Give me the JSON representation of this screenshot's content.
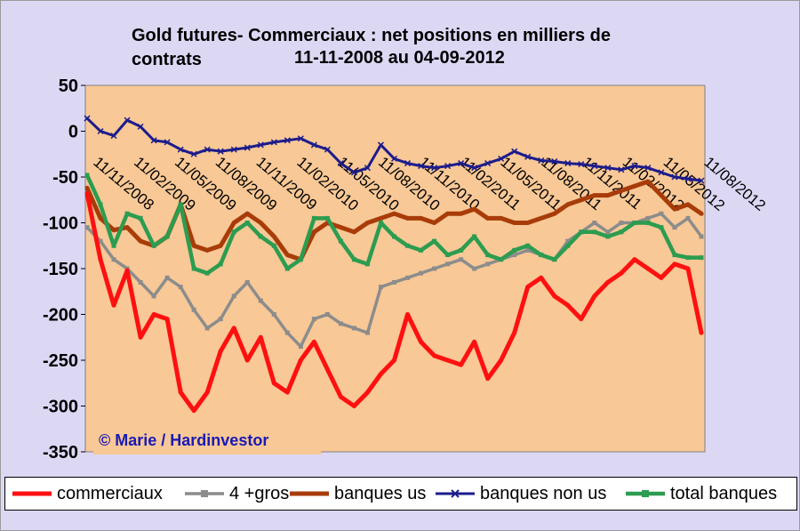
{
  "title": {
    "line1": "Gold futures- Commerciaux : net positions en milliers de",
    "line2": "contrats",
    "range": "11-11-2008 au 04-09-2012"
  },
  "watermark": "© Marie / Hardinvestor",
  "colors": {
    "background": "#dcd8f4",
    "plot": "#f8c896",
    "commerciaux": "#ff1010",
    "gros": "#8c8c8c",
    "banques_us": "#a83c08",
    "banques_non_us": "#1c1c8c",
    "total_banques": "#2c9c50",
    "watermark": "#1a1ab4"
  },
  "legend": [
    {
      "key": "commerciaux",
      "label": "commerciaux",
      "marker": "none"
    },
    {
      "key": "gros",
      "label": "4 +gros",
      "marker": "square"
    },
    {
      "key": "banques_us",
      "label": "banques us",
      "marker": "none"
    },
    {
      "key": "banques_non_us",
      "label": "banques non us",
      "marker": "x"
    },
    {
      "key": "total_banques",
      "label": "total banques",
      "marker": "square"
    }
  ],
  "chart_data": {
    "type": "line",
    "title": "Gold futures- Commerciaux : net positions en milliers de contrats 11-11-2008 au 04-09-2012",
    "ylim": [
      -350,
      50
    ],
    "yticks": [
      50,
      0,
      -50,
      -100,
      -150,
      -200,
      -250,
      -300,
      -350
    ],
    "ytick_labels": [
      "50",
      "0",
      "-50",
      "-100",
      "-150",
      "-200",
      "-250",
      "-300",
      "-350"
    ],
    "grid": false,
    "legend_position": "bottom",
    "x": [
      "11/11/2008",
      "11/12/2008",
      "11/01/2009",
      "11/02/2009",
      "11/03/2009",
      "11/04/2009",
      "11/05/2009",
      "11/06/2009",
      "11/07/2009",
      "11/08/2009",
      "11/09/2009",
      "11/10/2009",
      "11/11/2009",
      "11/12/2009",
      "11/01/2010",
      "11/02/2010",
      "11/03/2010",
      "11/04/2010",
      "11/05/2010",
      "11/06/2010",
      "11/07/2010",
      "11/08/2010",
      "11/09/2010",
      "11/10/2010",
      "11/11/2010",
      "11/12/2010",
      "11/01/2011",
      "11/02/2011",
      "11/03/2011",
      "11/04/2011",
      "11/05/2011",
      "11/06/2011",
      "11/07/2011",
      "11/08/2011",
      "11/09/2011",
      "11/10/2011",
      "11/11/2011",
      "11/12/2011",
      "11/01/2012",
      "11/02/2012",
      "11/03/2012",
      "11/04/2012",
      "11/05/2012",
      "11/06/2012",
      "11/07/2012",
      "11/08/2012",
      "04/09/2012"
    ],
    "x_tick_labels": [
      "11/11/2008",
      "11/02/2009",
      "11/05/2009",
      "11/08/2009",
      "11/11/2009",
      "11/02/2010",
      "11/05/2010",
      "11/08/2010",
      "11/11/2010",
      "11/02/2011",
      "11/05/2011",
      "11/08/2011",
      "11/11/2011",
      "11/02/2012",
      "11/05/2012",
      "11/08/2012"
    ],
    "series": [
      {
        "name": "commerciaux",
        "key": "commerciaux",
        "values": [
          -68,
          -140,
          -190,
          -152,
          -225,
          -200,
          -205,
          -285,
          -305,
          -285,
          -240,
          -215,
          -250,
          -225,
          -275,
          -285,
          -250,
          -230,
          -260,
          -290,
          -300,
          -285,
          -265,
          -250,
          -200,
          -230,
          -245,
          -250,
          -255,
          -230,
          -270,
          -250,
          -220,
          -170,
          -160,
          -180,
          -190,
          -205,
          -180,
          -165,
          -155,
          -140,
          -150,
          -160,
          -145,
          -150,
          -220
        ]
      },
      {
        "name": "4 +gros",
        "key": "gros",
        "values": [
          -105,
          -120,
          -140,
          -150,
          -165,
          -180,
          -160,
          -170,
          -195,
          -215,
          -205,
          -180,
          -165,
          -185,
          -200,
          -220,
          -235,
          -205,
          -200,
          -210,
          -215,
          -220,
          -170,
          -165,
          -160,
          -155,
          -150,
          -145,
          -140,
          -150,
          -145,
          -140,
          -135,
          -130,
          -135,
          -140,
          -120,
          -110,
          -100,
          -110,
          -100,
          -100,
          -95,
          -90,
          -105,
          -95,
          -115
        ]
      },
      {
        "name": "banques us",
        "key": "banques_us",
        "values": [
          -62,
          -95,
          -108,
          -105,
          -120,
          -125,
          -115,
          -80,
          -125,
          -130,
          -125,
          -100,
          -90,
          -100,
          -115,
          -135,
          -140,
          -110,
          -100,
          -105,
          -110,
          -100,
          -95,
          -90,
          -95,
          -95,
          -100,
          -90,
          -90,
          -85,
          -95,
          -95,
          -100,
          -100,
          -95,
          -90,
          -80,
          -75,
          -70,
          -70,
          -65,
          -60,
          -55,
          -70,
          -85,
          -80,
          -90
        ]
      },
      {
        "name": "banques non us",
        "key": "banques_non_us",
        "values": [
          14,
          0,
          -5,
          12,
          5,
          -10,
          -12,
          -20,
          -25,
          -20,
          -22,
          -20,
          -18,
          -15,
          -12,
          -10,
          -8,
          -15,
          -20,
          -35,
          -45,
          -40,
          -15,
          -30,
          -35,
          -38,
          -40,
          -38,
          -35,
          -40,
          -35,
          -30,
          -22,
          -28,
          -32,
          -33,
          -35,
          -36,
          -38,
          -40,
          -42,
          -38,
          -40,
          -45,
          -50,
          -52,
          -54
        ]
      },
      {
        "name": "total banques",
        "key": "total_banques",
        "values": [
          -48,
          -80,
          -125,
          -90,
          -95,
          -125,
          -115,
          -80,
          -150,
          -155,
          -145,
          -110,
          -100,
          -115,
          -125,
          -150,
          -140,
          -95,
          -95,
          -120,
          -140,
          -145,
          -100,
          -115,
          -125,
          -130,
          -120,
          -135,
          -130,
          -115,
          -135,
          -140,
          -130,
          -125,
          -135,
          -140,
          -125,
          -110,
          -110,
          -115,
          -110,
          -100,
          -100,
          -105,
          -135,
          -138,
          -138
        ]
      }
    ]
  }
}
